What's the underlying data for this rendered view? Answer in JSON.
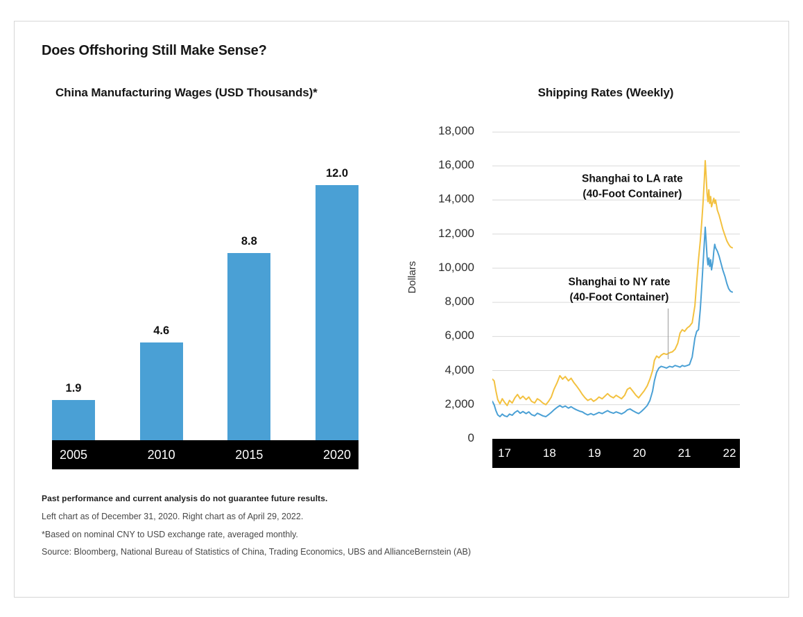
{
  "title": "Does Offshoring Still Make Sense?",
  "colors": {
    "bar_blue": "#4AA0D5",
    "line_yellow": "#F3C13F",
    "line_blue": "#4AA0D5",
    "axis_strip": "#000000",
    "gridline": "#d9d9d9"
  },
  "footnotes": {
    "disclaimer": "Past performance and current analysis do not guarantee future results.",
    "as_of": "Left chart as of December 31, 2020. Right chart as of April 29, 2022.",
    "note": "*Based on nominal CNY to USD exchange rate, averaged monthly.",
    "source": "Source: Bloomberg, National Bureau of Statistics of China, Trading Economics, UBS and AllianceBernstein (AB)"
  },
  "chart_data": [
    {
      "type": "bar",
      "title": "China Manufacturing Wages (USD Thousands)*",
      "categories": [
        "2005",
        "2010",
        "2015",
        "2020"
      ],
      "values": [
        1.9,
        4.6,
        8.8,
        12.0
      ],
      "value_labels": [
        "1.9",
        "4.6",
        "8.8",
        "12.0"
      ],
      "ylim": [
        0,
        14.5
      ],
      "bar_color": "#4AA0D5",
      "axis_strip_color": "#000000"
    },
    {
      "type": "line",
      "title": "Shipping Rates (Weekly)",
      "ylabel": "Dollars",
      "xlim": [
        2017,
        2022.5
      ],
      "ylim": [
        0,
        18000
      ],
      "y_ticks": [
        0,
        2000,
        4000,
        6000,
        8000,
        10000,
        12000,
        14000,
        16000,
        18000
      ],
      "x_ticks": [
        {
          "label": "17",
          "year": 2017
        },
        {
          "label": "18",
          "year": 2018
        },
        {
          "label": "19",
          "year": 2019
        },
        {
          "label": "20",
          "year": 2020
        },
        {
          "label": "21",
          "year": 2021
        },
        {
          "label": "22",
          "year": 2022
        }
      ],
      "grid": true,
      "legend": "annotations-in-plot",
      "series": [
        {
          "name": "Shanghai to LA rate (40-Foot Container)",
          "color": "#F3C13F",
          "points": [
            [
              2017.0,
              3500
            ],
            [
              2017.04,
              3400
            ],
            [
              2017.08,
              2800
            ],
            [
              2017.12,
              2300
            ],
            [
              2017.17,
              2050
            ],
            [
              2017.22,
              2350
            ],
            [
              2017.27,
              2150
            ],
            [
              2017.33,
              1950
            ],
            [
              2017.38,
              2250
            ],
            [
              2017.44,
              2100
            ],
            [
              2017.5,
              2400
            ],
            [
              2017.56,
              2600
            ],
            [
              2017.62,
              2350
            ],
            [
              2017.68,
              2500
            ],
            [
              2017.75,
              2300
            ],
            [
              2017.81,
              2450
            ],
            [
              2017.87,
              2200
            ],
            [
              2017.94,
              2100
            ],
            [
              2018.0,
              2350
            ],
            [
              2018.06,
              2250
            ],
            [
              2018.12,
              2100
            ],
            [
              2018.19,
              2000
            ],
            [
              2018.25,
              2200
            ],
            [
              2018.31,
              2450
            ],
            [
              2018.37,
              2900
            ],
            [
              2018.44,
              3300
            ],
            [
              2018.5,
              3700
            ],
            [
              2018.56,
              3500
            ],
            [
              2018.62,
              3650
            ],
            [
              2018.69,
              3400
            ],
            [
              2018.75,
              3550
            ],
            [
              2018.81,
              3300
            ],
            [
              2018.87,
              3100
            ],
            [
              2018.94,
              2850
            ],
            [
              2019.0,
              2600
            ],
            [
              2019.06,
              2400
            ],
            [
              2019.12,
              2250
            ],
            [
              2019.19,
              2350
            ],
            [
              2019.25,
              2200
            ],
            [
              2019.31,
              2300
            ],
            [
              2019.37,
              2450
            ],
            [
              2019.44,
              2350
            ],
            [
              2019.5,
              2500
            ],
            [
              2019.56,
              2650
            ],
            [
              2019.62,
              2500
            ],
            [
              2019.69,
              2400
            ],
            [
              2019.75,
              2550
            ],
            [
              2019.81,
              2450
            ],
            [
              2019.87,
              2350
            ],
            [
              2019.94,
              2550
            ],
            [
              2020.0,
              2900
            ],
            [
              2020.06,
              3000
            ],
            [
              2020.12,
              2800
            ],
            [
              2020.19,
              2550
            ],
            [
              2020.25,
              2400
            ],
            [
              2020.31,
              2600
            ],
            [
              2020.37,
              2800
            ],
            [
              2020.44,
              3100
            ],
            [
              2020.5,
              3500
            ],
            [
              2020.56,
              4000
            ],
            [
              2020.6,
              4600
            ],
            [
              2020.65,
              4850
            ],
            [
              2020.7,
              4750
            ],
            [
              2020.75,
              4900
            ],
            [
              2020.81,
              5000
            ],
            [
              2020.87,
              4950
            ],
            [
              2020.94,
              5050
            ],
            [
              2021.0,
              5100
            ],
            [
              2021.06,
              5250
            ],
            [
              2021.12,
              5600
            ],
            [
              2021.17,
              6200
            ],
            [
              2021.22,
              6400
            ],
            [
              2021.27,
              6300
            ],
            [
              2021.33,
              6500
            ],
            [
              2021.38,
              6600
            ],
            [
              2021.44,
              6800
            ],
            [
              2021.5,
              7800
            ],
            [
              2021.54,
              9200
            ],
            [
              2021.58,
              10500
            ],
            [
              2021.62,
              11600
            ],
            [
              2021.65,
              12600
            ],
            [
              2021.68,
              13800
            ],
            [
              2021.71,
              15200
            ],
            [
              2021.73,
              16300
            ],
            [
              2021.75,
              15400
            ],
            [
              2021.77,
              14400
            ],
            [
              2021.79,
              13900
            ],
            [
              2021.81,
              14600
            ],
            [
              2021.83,
              13800
            ],
            [
              2021.85,
              14200
            ],
            [
              2021.87,
              13600
            ],
            [
              2021.9,
              13900
            ],
            [
              2021.92,
              14100
            ],
            [
              2021.94,
              13800
            ],
            [
              2021.96,
              14000
            ],
            [
              2022.0,
              13400
            ],
            [
              2022.04,
              13100
            ],
            [
              2022.08,
              12700
            ],
            [
              2022.12,
              12300
            ],
            [
              2022.17,
              11900
            ],
            [
              2022.21,
              11600
            ],
            [
              2022.25,
              11400
            ],
            [
              2022.29,
              11250
            ],
            [
              2022.33,
              11200
            ]
          ]
        },
        {
          "name": "Shanghai to NY rate (40-Foot Container)",
          "color": "#4AA0D5",
          "points": [
            [
              2017.0,
              2200
            ],
            [
              2017.04,
              2000
            ],
            [
              2017.08,
              1650
            ],
            [
              2017.12,
              1400
            ],
            [
              2017.17,
              1300
            ],
            [
              2017.22,
              1450
            ],
            [
              2017.27,
              1350
            ],
            [
              2017.33,
              1300
            ],
            [
              2017.38,
              1450
            ],
            [
              2017.44,
              1380
            ],
            [
              2017.5,
              1550
            ],
            [
              2017.56,
              1650
            ],
            [
              2017.62,
              1500
            ],
            [
              2017.68,
              1600
            ],
            [
              2017.75,
              1480
            ],
            [
              2017.81,
              1580
            ],
            [
              2017.87,
              1420
            ],
            [
              2017.94,
              1350
            ],
            [
              2018.0,
              1500
            ],
            [
              2018.06,
              1430
            ],
            [
              2018.12,
              1350
            ],
            [
              2018.19,
              1300
            ],
            [
              2018.25,
              1420
            ],
            [
              2018.31,
              1550
            ],
            [
              2018.37,
              1700
            ],
            [
              2018.44,
              1850
            ],
            [
              2018.5,
              1950
            ],
            [
              2018.56,
              1850
            ],
            [
              2018.62,
              1920
            ],
            [
              2018.69,
              1800
            ],
            [
              2018.75,
              1880
            ],
            [
              2018.81,
              1780
            ],
            [
              2018.87,
              1700
            ],
            [
              2018.94,
              1620
            ],
            [
              2019.0,
              1580
            ],
            [
              2019.06,
              1480
            ],
            [
              2019.12,
              1400
            ],
            [
              2019.19,
              1480
            ],
            [
              2019.25,
              1400
            ],
            [
              2019.31,
              1470
            ],
            [
              2019.37,
              1550
            ],
            [
              2019.44,
              1480
            ],
            [
              2019.5,
              1570
            ],
            [
              2019.56,
              1650
            ],
            [
              2019.62,
              1560
            ],
            [
              2019.69,
              1500
            ],
            [
              2019.75,
              1580
            ],
            [
              2019.81,
              1520
            ],
            [
              2019.87,
              1460
            ],
            [
              2019.94,
              1560
            ],
            [
              2020.0,
              1700
            ],
            [
              2020.06,
              1750
            ],
            [
              2020.12,
              1650
            ],
            [
              2020.19,
              1550
            ],
            [
              2020.25,
              1480
            ],
            [
              2020.31,
              1600
            ],
            [
              2020.37,
              1750
            ],
            [
              2020.44,
              1950
            ],
            [
              2020.5,
              2250
            ],
            [
              2020.56,
              2800
            ],
            [
              2020.6,
              3400
            ],
            [
              2020.65,
              3900
            ],
            [
              2020.7,
              4150
            ],
            [
              2020.75,
              4250
            ],
            [
              2020.81,
              4200
            ],
            [
              2020.87,
              4150
            ],
            [
              2020.94,
              4250
            ],
            [
              2021.0,
              4200
            ],
            [
              2021.06,
              4300
            ],
            [
              2021.12,
              4250
            ],
            [
              2021.17,
              4200
            ],
            [
              2021.22,
              4300
            ],
            [
              2021.27,
              4250
            ],
            [
              2021.33,
              4300
            ],
            [
              2021.38,
              4350
            ],
            [
              2021.44,
              4800
            ],
            [
              2021.5,
              5900
            ],
            [
              2021.54,
              6300
            ],
            [
              2021.58,
              6400
            ],
            [
              2021.62,
              7600
            ],
            [
              2021.65,
              8800
            ],
            [
              2021.68,
              10200
            ],
            [
              2021.71,
              11500
            ],
            [
              2021.73,
              12400
            ],
            [
              2021.75,
              11600
            ],
            [
              2021.77,
              10700
            ],
            [
              2021.79,
              10200
            ],
            [
              2021.81,
              10600
            ],
            [
              2021.83,
              10100
            ],
            [
              2021.85,
              10500
            ],
            [
              2021.87,
              9900
            ],
            [
              2021.9,
              10400
            ],
            [
              2021.92,
              11000
            ],
            [
              2021.94,
              11400
            ],
            [
              2021.96,
              11200
            ],
            [
              2022.0,
              11000
            ],
            [
              2022.04,
              10700
            ],
            [
              2022.08,
              10300
            ],
            [
              2022.12,
              9900
            ],
            [
              2022.17,
              9500
            ],
            [
              2022.21,
              9100
            ],
            [
              2022.25,
              8800
            ],
            [
              2022.29,
              8650
            ],
            [
              2022.33,
              8600
            ]
          ]
        }
      ],
      "annotations": [
        {
          "lines": [
            "Shanghai to LA rate",
            "(40-Foot Container)"
          ],
          "year": 2020.11,
          "value": 14750
        },
        {
          "lines": [
            "Shanghai to NY rate",
            "(40-Foot Container)"
          ],
          "year": 2019.82,
          "value": 8700,
          "leader": {
            "year": 2020.89,
            "from": 7650,
            "to": 4650
          }
        }
      ]
    }
  ]
}
